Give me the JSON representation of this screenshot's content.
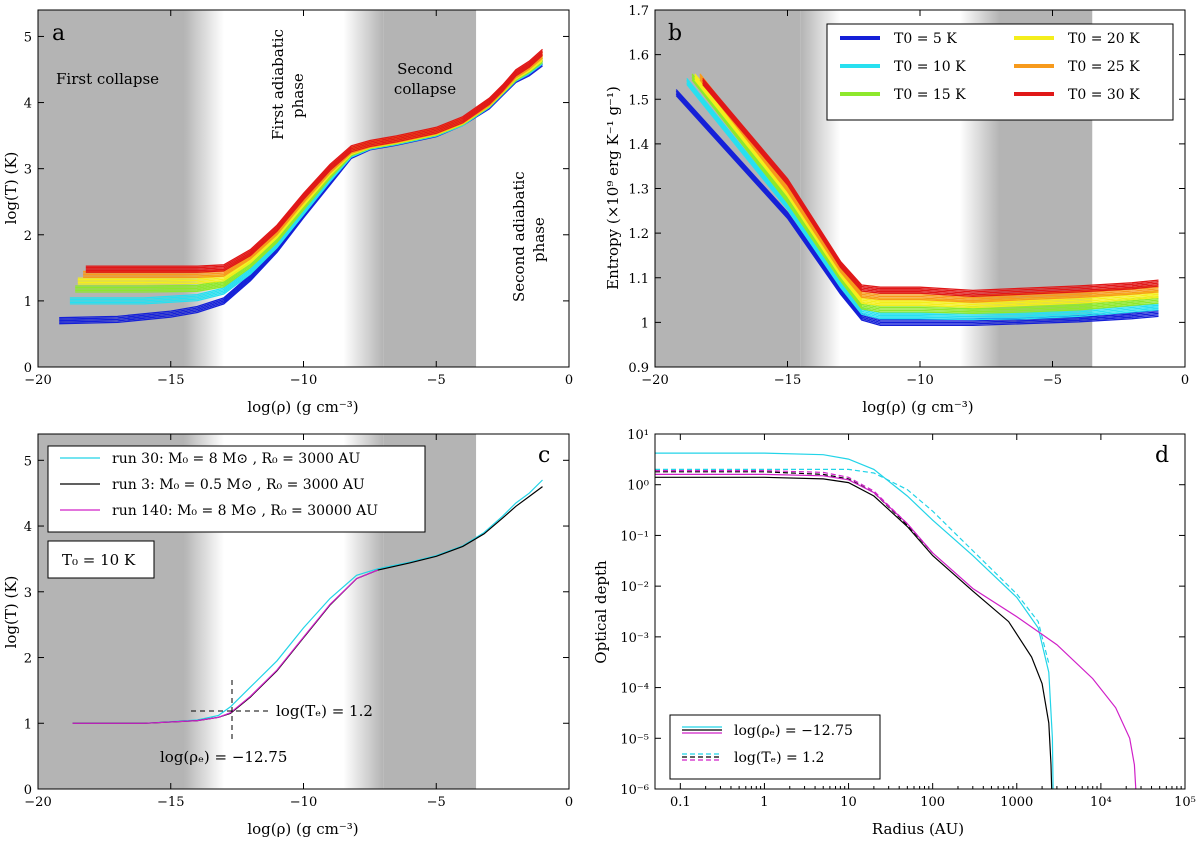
{
  "figure": {
    "panels": [
      "a",
      "b",
      "c",
      "d"
    ]
  },
  "chart_data": [
    {
      "panel": "a",
      "type": "line",
      "xlabel": "log(ρ) (g cm⁻³)",
      "ylabel": "log(T) (K)",
      "xlim": [
        -20,
        0
      ],
      "ylim": [
        0,
        5.4
      ],
      "xticks": [
        -20,
        -15,
        -10,
        -5,
        0
      ],
      "yticks": [
        0,
        1,
        2,
        3,
        4,
        5
      ],
      "shaded_regions": [
        [
          -20,
          -14.5,
          "solid"
        ],
        [
          -14.5,
          -13,
          "fade"
        ],
        [
          -8.5,
          -7,
          "fade"
        ],
        [
          -7,
          -3.5,
          "solid"
        ]
      ],
      "phase_labels": [
        "First collapse",
        "First adiabatic phase",
        "Second collapse",
        "Second adiabatic phase"
      ],
      "series": [
        {
          "name": "T0 = 5 K",
          "color": "#1520d8",
          "x": [
            -19.2,
            -17,
            -15,
            -14,
            -13,
            -12,
            -11,
            -10,
            -9,
            -8.2,
            -7.5,
            -6.5,
            -5,
            -4,
            -3,
            -2.5,
            -2,
            -1.5,
            -1
          ],
          "y": [
            0.7,
            0.72,
            0.8,
            0.87,
            1.0,
            1.35,
            1.78,
            2.3,
            2.8,
            3.2,
            3.33,
            3.4,
            3.53,
            3.7,
            3.95,
            4.15,
            4.35,
            4.45,
            4.6
          ]
        },
        {
          "name": "T0 = 10 K",
          "color": "#27e0f0",
          "x": [
            -18.8,
            -16,
            -14,
            -13,
            -12,
            -11,
            -10,
            -9,
            -8.2,
            -7.5,
            -6.5,
            -5,
            -4,
            -3,
            -2.5,
            -2,
            -1.5,
            -1
          ],
          "y": [
            1.0,
            1.0,
            1.05,
            1.15,
            1.45,
            1.85,
            2.35,
            2.85,
            3.22,
            3.34,
            3.41,
            3.54,
            3.7,
            3.97,
            4.17,
            4.37,
            4.48,
            4.63
          ]
        },
        {
          "name": "T0 = 15 K",
          "color": "#8ee82c",
          "x": [
            -18.6,
            -16,
            -14,
            -13,
            -12,
            -11,
            -10,
            -9,
            -8.2,
            -7.5,
            -6.5,
            -5,
            -4,
            -3,
            -2.5,
            -2,
            -1.5,
            -1
          ],
          "y": [
            1.18,
            1.18,
            1.19,
            1.26,
            1.55,
            1.93,
            2.42,
            2.9,
            3.24,
            3.35,
            3.42,
            3.55,
            3.71,
            3.98,
            4.18,
            4.38,
            4.5,
            4.65
          ]
        },
        {
          "name": "T0 = 20 K",
          "color": "#f4ee1c",
          "x": [
            -18.5,
            -16,
            -14,
            -13,
            -12,
            -11,
            -10,
            -9,
            -8.2,
            -7.5,
            -6.5,
            -5,
            -4,
            -3,
            -2.5,
            -2,
            -1.5,
            -1
          ],
          "y": [
            1.3,
            1.3,
            1.31,
            1.35,
            1.62,
            2.0,
            2.48,
            2.95,
            3.26,
            3.36,
            3.43,
            3.56,
            3.72,
            3.99,
            4.19,
            4.4,
            4.52,
            4.68
          ]
        },
        {
          "name": "T0 = 25 K",
          "color": "#f79a1c",
          "x": [
            -18.3,
            -16,
            -14,
            -13,
            -12,
            -11,
            -10,
            -9,
            -8.2,
            -7.5,
            -6.5,
            -5,
            -4,
            -3,
            -2.5,
            -2,
            -1.5,
            -1
          ],
          "y": [
            1.4,
            1.4,
            1.4,
            1.42,
            1.68,
            2.05,
            2.53,
            2.98,
            3.28,
            3.37,
            3.44,
            3.57,
            3.73,
            4.0,
            4.2,
            4.42,
            4.55,
            4.72
          ]
        },
        {
          "name": "T0 = 30 K",
          "color": "#e01818",
          "x": [
            -18.2,
            -16,
            -14,
            -13,
            -12,
            -11,
            -10,
            -9,
            -8.2,
            -7.5,
            -6.5,
            -5,
            -4,
            -3,
            -2.5,
            -2,
            -1.5,
            -1
          ],
          "y": [
            1.48,
            1.48,
            1.48,
            1.5,
            1.73,
            2.1,
            2.58,
            3.02,
            3.3,
            3.38,
            3.45,
            3.58,
            3.74,
            4.02,
            4.22,
            4.45,
            4.58,
            4.76
          ]
        }
      ]
    },
    {
      "panel": "b",
      "type": "line",
      "xlabel": "log(ρ) (g cm⁻³)",
      "ylabel": "Entropy (×10⁹ erg K⁻¹ g⁻¹)",
      "xlim": [
        -20,
        0
      ],
      "ylim": [
        0.9,
        1.7
      ],
      "xticks": [
        -20,
        -15,
        -10,
        -5,
        0
      ],
      "yticks": [
        0.9,
        1.0,
        1.1,
        1.2,
        1.3,
        1.4,
        1.5,
        1.6,
        1.7
      ],
      "shaded_regions": [
        [
          -20,
          -14.5,
          "solid"
        ],
        [
          -14.5,
          -13,
          "fade"
        ],
        [
          -8.5,
          -7,
          "fade"
        ],
        [
          -7,
          -3.5,
          "solid"
        ]
      ],
      "legend": [
        "T0 = 5 K",
        "T0 = 10 K",
        "T0 = 15 K",
        "T0 = 20 K",
        "T0 = 25 K",
        "T0 = 30 K"
      ],
      "series": [
        {
          "name": "T0 = 5 K",
          "color": "#1520d8",
          "x": [
            -19.2,
            -15,
            -13,
            -12.2,
            -11.5,
            -10,
            -8,
            -6,
            -4,
            -2,
            -1
          ],
          "y": [
            1.515,
            1.24,
            1.07,
            1.012,
            1.0,
            1.0,
            1.0,
            1.004,
            1.008,
            1.015,
            1.02
          ]
        },
        {
          "name": "T0 = 10 K",
          "color": "#27e0f0",
          "x": [
            -18.8,
            -15,
            -13,
            -12.2,
            -11.5,
            -10,
            -8,
            -6,
            -4,
            -2,
            -1
          ],
          "y": [
            1.54,
            1.26,
            1.085,
            1.025,
            1.015,
            1.015,
            1.013,
            1.015,
            1.02,
            1.03,
            1.035
          ]
        },
        {
          "name": "T0 = 15 K",
          "color": "#8ee82c",
          "x": [
            -18.6,
            -15,
            -13,
            -12.2,
            -11.5,
            -10,
            -8,
            -6,
            -4,
            -2,
            -1
          ],
          "y": [
            1.55,
            1.275,
            1.1,
            1.037,
            1.03,
            1.03,
            1.027,
            1.03,
            1.035,
            1.045,
            1.05
          ]
        },
        {
          "name": "T0 = 20 K",
          "color": "#f4ee1c",
          "x": [
            -18.5,
            -15,
            -13,
            -12.2,
            -11.5,
            -10,
            -8,
            -6,
            -4,
            -2,
            -1
          ],
          "y": [
            1.55,
            1.29,
            1.11,
            1.05,
            1.045,
            1.045,
            1.04,
            1.045,
            1.05,
            1.058,
            1.063
          ]
        },
        {
          "name": "T0 = 25 K",
          "color": "#f79a1c",
          "x": [
            -18.3,
            -15,
            -13,
            -12.2,
            -11.5,
            -10,
            -8,
            -6,
            -4,
            -2,
            -1
          ],
          "y": [
            1.55,
            1.3,
            1.12,
            1.063,
            1.058,
            1.058,
            1.052,
            1.058,
            1.063,
            1.07,
            1.075
          ]
        },
        {
          "name": "T0 = 30 K",
          "color": "#e01818",
          "x": [
            -18.2,
            -15,
            -13,
            -12.2,
            -11.5,
            -10,
            -8,
            -6,
            -4,
            -2,
            -1
          ],
          "y": [
            1.54,
            1.315,
            1.13,
            1.077,
            1.072,
            1.072,
            1.065,
            1.07,
            1.075,
            1.082,
            1.088
          ]
        }
      ]
    },
    {
      "panel": "c",
      "type": "line",
      "xlabel": "log(ρ) (g cm⁻³)",
      "ylabel": "log(T) (K)",
      "xlim": [
        -20,
        0
      ],
      "ylim": [
        0,
        5.4
      ],
      "xticks": [
        -20,
        -15,
        -10,
        -5,
        0
      ],
      "yticks": [
        0,
        1,
        2,
        3,
        4,
        5
      ],
      "shaded_regions": [
        [
          -20,
          -14.5,
          "solid"
        ],
        [
          -14.5,
          -13,
          "fade"
        ],
        [
          -8.5,
          -7,
          "fade"
        ],
        [
          -7,
          -3.5,
          "solid"
        ]
      ],
      "legend": [
        "run  30: M₀ =    8 M⊙ , R₀ =   3000 AU",
        "run    3: M₀ = 0.5 M⊙ , R₀ =   3000 AU",
        "run 140: M₀ =    8 M⊙ , R₀ = 30000 AU"
      ],
      "t0_box": "T₀ = 10 K",
      "annotations": [
        "log(Tₑ) = 1.2",
        "log(ρₑ) = −12.75"
      ],
      "series": [
        {
          "name": "run 30",
          "color": "#22d4e8",
          "x": [
            -18.7,
            -16,
            -14,
            -13.2,
            -12.75,
            -12,
            -11,
            -10,
            -9,
            -8,
            -7.2,
            -6,
            -5,
            -4,
            -3.2,
            -2.5,
            -2,
            -1.5,
            -1
          ],
          "y": [
            1.0,
            1.0,
            1.05,
            1.12,
            1.25,
            1.55,
            1.95,
            2.45,
            2.9,
            3.25,
            3.35,
            3.45,
            3.55,
            3.7,
            3.9,
            4.15,
            4.35,
            4.5,
            4.7
          ]
        },
        {
          "name": "run 3",
          "color": "#000000",
          "x": [
            -18.7,
            -16,
            -14,
            -13.2,
            -12.75,
            -12,
            -11,
            -10,
            -9,
            -8,
            -7.2,
            -6,
            -5,
            -4,
            -3.2,
            -2.5,
            -2,
            -1.5,
            -1
          ],
          "y": [
            1.0,
            1.0,
            1.04,
            1.09,
            1.15,
            1.4,
            1.8,
            2.3,
            2.8,
            3.2,
            3.33,
            3.44,
            3.54,
            3.69,
            3.88,
            4.12,
            4.3,
            4.45,
            4.6
          ]
        },
        {
          "name": "run 140",
          "color": "#d020c8",
          "x": [
            -18.7,
            -16,
            -14,
            -13.2,
            -12.75,
            -12,
            -11,
            -10,
            -9,
            -8,
            -7.2
          ],
          "y": [
            1.0,
            1.0,
            1.04,
            1.09,
            1.16,
            1.41,
            1.81,
            2.31,
            2.81,
            3.2,
            3.33
          ]
        }
      ]
    },
    {
      "panel": "d",
      "type": "line",
      "xscale": "log",
      "yscale": "log",
      "xlabel": "Radius (AU)",
      "ylabel": "Optical depth",
      "xlim": [
        0.05,
        100000
      ],
      "ylim": [
        1e-06,
        10
      ],
      "xtick_labels": [
        "0.1",
        "1",
        "10",
        "100",
        "1000",
        "10⁴",
        "10⁵"
      ],
      "ytick_labels": [
        "10⁻⁶",
        "10⁻⁵",
        "10⁻⁴",
        "10⁻³",
        "10⁻²",
        "10⁻¹",
        "10⁰",
        "10¹"
      ],
      "legend": [
        "log(ρₑ) = −12.75",
        "log(Tₑ) = 1.2"
      ],
      "series": [
        {
          "name": "run 30 rho",
          "color": "#22d4e8",
          "style": "solid",
          "x": [
            0.05,
            1,
            5,
            10,
            20,
            50,
            100,
            300,
            1000,
            1800,
            2400,
            2650,
            2700
          ],
          "y": [
            4.2,
            4.2,
            3.9,
            3.2,
            2.0,
            0.6,
            0.2,
            0.04,
            0.006,
            0.0015,
            0.0002,
            1e-05,
            1e-06
          ]
        },
        {
          "name": "run 30 T",
          "color": "#22d4e8",
          "style": "dashed",
          "x": [
            0.05,
            1,
            5,
            10,
            20,
            50,
            100,
            300,
            1000,
            1800,
            2400
          ],
          "y": [
            2.0,
            2.0,
            2.0,
            2.0,
            1.7,
            0.8,
            0.3,
            0.05,
            0.007,
            0.002,
            0.0003
          ]
        },
        {
          "name": "run 3 rho",
          "color": "#000000",
          "style": "solid",
          "x": [
            0.05,
            1,
            5,
            10,
            20,
            50,
            100,
            300,
            800,
            1500,
            2000,
            2400,
            2550,
            2600
          ],
          "y": [
            1.4,
            1.4,
            1.3,
            1.1,
            0.6,
            0.15,
            0.04,
            0.008,
            0.002,
            0.0004,
            0.00012,
            2e-05,
            3e-06,
            1e-06
          ]
        },
        {
          "name": "run 3 T",
          "color": "#000000",
          "style": "dashed",
          "x": [
            0.05,
            1,
            5,
            10,
            20,
            50,
            100
          ],
          "y": [
            1.8,
            1.8,
            1.6,
            1.3,
            0.7,
            0.16,
            0.045
          ]
        },
        {
          "name": "run 140 rho",
          "color": "#d020c8",
          "style": "solid",
          "x": [
            0.05,
            1,
            5,
            10,
            20,
            50,
            100,
            300,
            1000,
            3000,
            8000,
            15000,
            22000,
            25000,
            26000
          ],
          "y": [
            1.6,
            1.6,
            1.5,
            1.25,
            0.7,
            0.17,
            0.045,
            0.009,
            0.0025,
            0.0007,
            0.00015,
            4e-05,
            1e-05,
            3e-06,
            1e-06
          ]
        },
        {
          "name": "run 140 T",
          "color": "#d020c8",
          "style": "dashed",
          "x": [
            0.05,
            1,
            5,
            10,
            20,
            50,
            100
          ],
          "y": [
            1.9,
            1.9,
            1.75,
            1.4,
            0.75,
            0.17,
            0.045
          ]
        }
      ]
    }
  ]
}
